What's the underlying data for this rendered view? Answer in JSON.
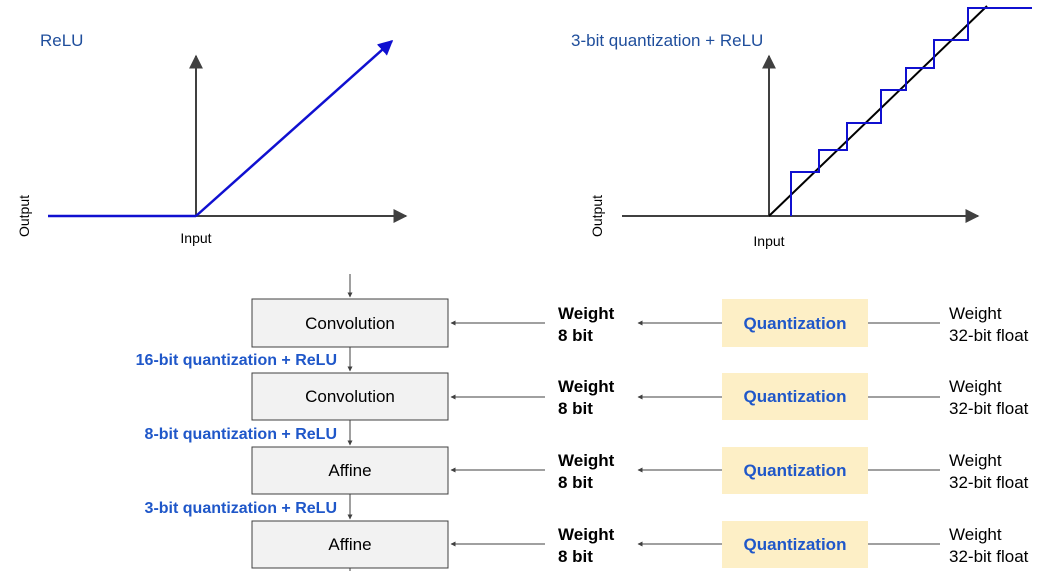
{
  "colors": {
    "accent_blue": "#1f57c9",
    "title_blue": "#1f4e9c",
    "curve_blue": "#1010d0",
    "axis": "#404040",
    "box_fill": "#f2f2f2",
    "quant_fill": "#fdefc6"
  },
  "relu_plot": {
    "title": "ReLU",
    "xlabel": "Input",
    "ylabel": "Output"
  },
  "quant_plot": {
    "title": "3-bit quantization + ReLU",
    "xlabel": "Input",
    "ylabel": "Output"
  },
  "pipeline": {
    "layers": [
      {
        "name": "Convolution",
        "weight_line1": "Weight",
        "weight_line2": "8 bit",
        "quant": "Quantization",
        "src_line1": "Weight",
        "src_line2": "32-bit float"
      },
      {
        "name": "Convolution",
        "weight_line1": "Weight",
        "weight_line2": "8 bit",
        "quant": "Quantization",
        "src_line1": "Weight",
        "src_line2": "32-bit float"
      },
      {
        "name": "Affine",
        "weight_line1": "Weight",
        "weight_line2": "8 bit",
        "quant": "Quantization",
        "src_line1": "Weight",
        "src_line2": "32-bit float"
      },
      {
        "name": "Affine",
        "weight_line1": "Weight",
        "weight_line2": "8 bit",
        "quant": "Quantization",
        "src_line1": "Weight",
        "src_line2": "32-bit float"
      }
    ],
    "stages": [
      "16-bit quantization + ReLU",
      "8-bit quantization + ReLU",
      "3-bit quantization + ReLU"
    ]
  }
}
